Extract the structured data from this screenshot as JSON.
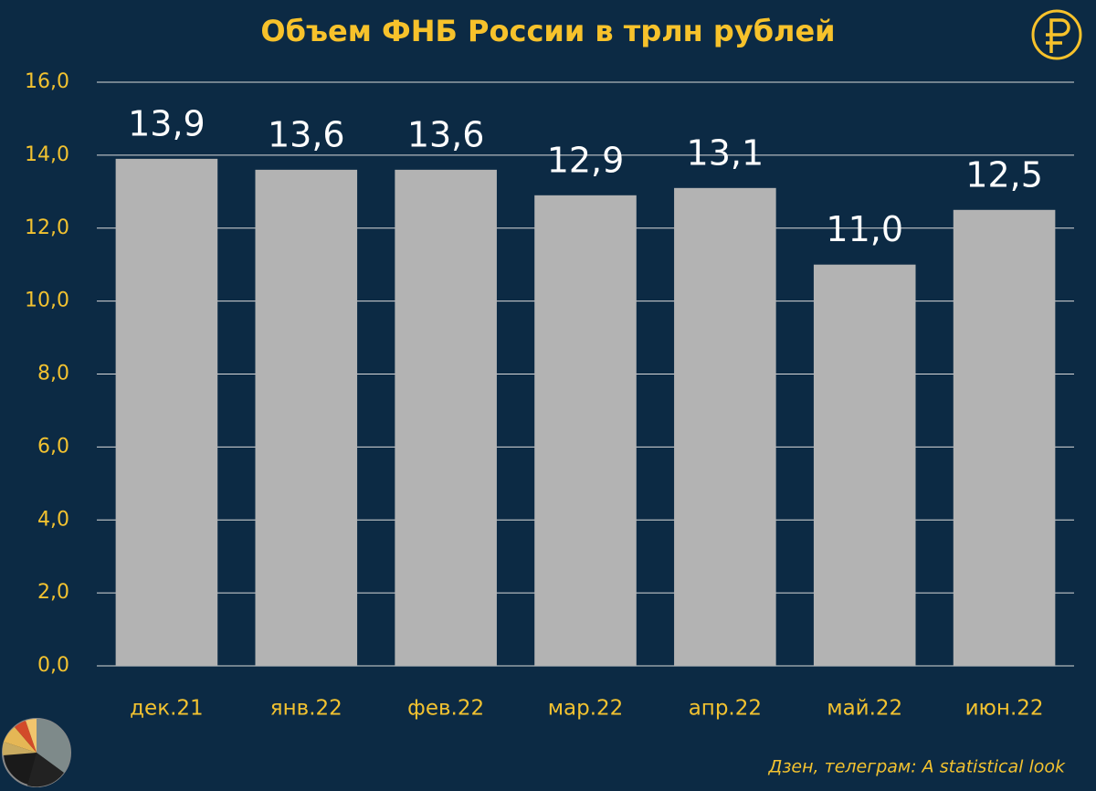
{
  "chart_data": {
    "type": "bar",
    "title": "Объем ФНБ России в трлн рублей",
    "categories": [
      "дек.21",
      "янв.22",
      "фев.22",
      "мар.22",
      "апр.22",
      "май.22",
      "июн.22"
    ],
    "values": [
      13.9,
      13.6,
      13.6,
      12.9,
      13.1,
      11.0,
      12.5
    ],
    "value_labels": [
      "13,9",
      "13,6",
      "13,6",
      "12,9",
      "13,1",
      "11,0",
      "12,5"
    ],
    "color": "#b3b3b3",
    "ylim": [
      0,
      16
    ],
    "yticks": [
      {
        "value": 0,
        "label": "0,0"
      },
      {
        "value": 2,
        "label": "2,0"
      },
      {
        "value": 4,
        "label": "4,0"
      },
      {
        "value": 6,
        "label": "6,0"
      },
      {
        "value": 8,
        "label": "8,0"
      },
      {
        "value": 10,
        "label": "10,0"
      },
      {
        "value": 12,
        "label": "12,0"
      },
      {
        "value": 14,
        "label": "14,0"
      },
      {
        "value": 16,
        "label": "16,0"
      }
    ],
    "grid": true,
    "source": "Дзен, телеграм: A statistical look"
  }
}
